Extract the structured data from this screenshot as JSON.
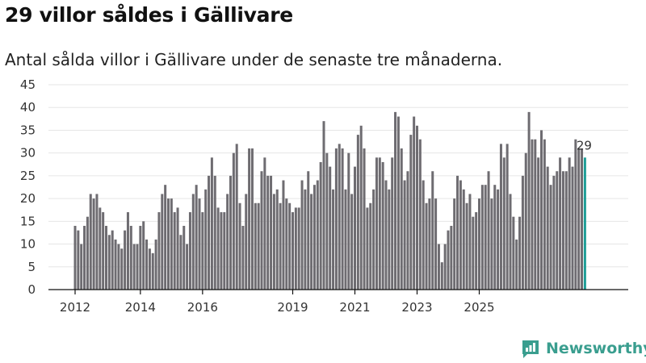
{
  "chart_data": {
    "type": "bar",
    "title": "29 villor såldes i Gällivare",
    "subtitle": "Antal sålda villor i Gällivare under de senaste tre månaderna.",
    "ylim": [
      0,
      45
    ],
    "yticks": [
      0,
      5,
      10,
      15,
      20,
      25,
      30,
      35,
      40,
      45
    ],
    "xtick_labels": [
      "2012",
      "2014",
      "2016",
      "2019",
      "2021",
      "2023",
      "2025"
    ],
    "xtick_bar_index": [
      0,
      21,
      41,
      70,
      90,
      110,
      130
    ],
    "colors": {
      "bar": "#6e6c71",
      "highlight": "#1e9e97"
    },
    "highlight_label": "29",
    "values": [
      14,
      13,
      10,
      14,
      16,
      21,
      20,
      21,
      18,
      17,
      14,
      12,
      13,
      11,
      10,
      9,
      13,
      17,
      14,
      10,
      10,
      14,
      15,
      11,
      9,
      8,
      11,
      17,
      21,
      23,
      20,
      20,
      17,
      18,
      12,
      14,
      10,
      17,
      21,
      23,
      20,
      17,
      22,
      25,
      29,
      25,
      18,
      17,
      17,
      21,
      25,
      30,
      32,
      19,
      14,
      21,
      31,
      31,
      19,
      19,
      26,
      29,
      25,
      25,
      21,
      22,
      19,
      24,
      20,
      19,
      17,
      18,
      18,
      24,
      22,
      26,
      21,
      23,
      24,
      28,
      37,
      30,
      27,
      22,
      31,
      32,
      31,
      22,
      30,
      21,
      27,
      34,
      36,
      31,
      18,
      19,
      22,
      29,
      29,
      28,
      24,
      22,
      29,
      39,
      38,
      31,
      24,
      26,
      34,
      38,
      36,
      33,
      24,
      19,
      20,
      26,
      20,
      10,
      6,
      10,
      13,
      14,
      20,
      25,
      24,
      22,
      19,
      21,
      16,
      17,
      20,
      23,
      23,
      26,
      20,
      23,
      22,
      32,
      29,
      32,
      21,
      16,
      11,
      16,
      25,
      30,
      39,
      33,
      33,
      29,
      35,
      33,
      27,
      23,
      25,
      26,
      29,
      26,
      26,
      29,
      27,
      33,
      31,
      31,
      29
    ]
  },
  "brand": {
    "name": "Newsworthy"
  }
}
